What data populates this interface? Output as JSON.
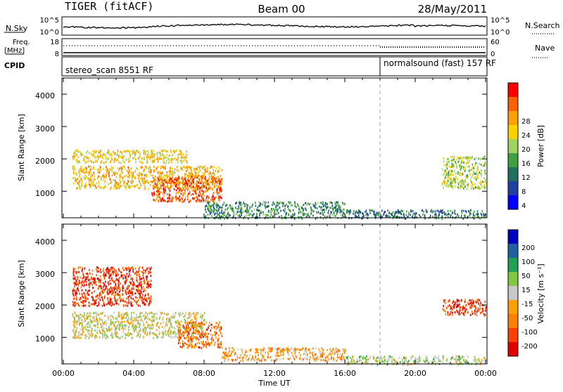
{
  "header": {
    "radar": "TIGER (fitACF)",
    "beam": "Beam 00",
    "date": "28/May/2011"
  },
  "nsky_panel": {
    "left_label": "N.Sky",
    "right_label": "N.Search",
    "ticks_left": [
      "10^5",
      "10^0"
    ],
    "ticks_right": [
      "10^5",
      "10^0"
    ]
  },
  "freq_panel": {
    "left_label_1": "Freq.",
    "left_label_2": "[MHz]",
    "ticks_left": [
      "18",
      "8"
    ],
    "ticks_right": [
      "60",
      "0"
    ],
    "right_label": "Nave"
  },
  "cpid_panel": {
    "label": "CPID",
    "segments": [
      {
        "name": "stereo_scan 8551 RF",
        "start_hour": 0
      },
      {
        "name": "normalsound (fast) 157 RF",
        "start_hour": 18
      }
    ]
  },
  "x_axis": {
    "label": "Time UT",
    "ticks": [
      "00:00",
      "04:00",
      "08:00",
      "12:00",
      "16:00",
      "20:00",
      "00:00"
    ]
  },
  "power_panel": {
    "ylabel": "Slant Range [km]",
    "yticks": [
      "4000",
      "3000",
      "2000",
      "1000"
    ],
    "colorbar_label": "Power [dB]",
    "colorbar_ticks": [
      "28",
      "24",
      "20",
      "16",
      "12",
      "8",
      "4"
    ],
    "colors": [
      "#ff0000",
      "#ff6000",
      "#ffa000",
      "#ffd000",
      "#a0d060",
      "#40a040",
      "#207060",
      "#2040a0",
      "#0000ff"
    ]
  },
  "velocity_panel": {
    "ylabel": "Slant Range [km]",
    "yticks": [
      "4000",
      "3000",
      "2000",
      "1000"
    ],
    "colorbar_label": "Velocity [m s⁻¹]",
    "colorbar_ticks": [
      "200",
      "100",
      "50",
      "15",
      "-15",
      "-50",
      "-100",
      "-200"
    ],
    "colors": [
      "#0000c0",
      "#2060a0",
      "#20a050",
      "#80c840",
      "#c8c8c8",
      "#ffa000",
      "#ff8000",
      "#ff4000",
      "#e00000"
    ]
  },
  "chart_data": [
    {
      "type": "heatmap",
      "title": "Power",
      "xlabel": "Time UT",
      "ylabel": "Slant Range [km]",
      "xlim": [
        0,
        24
      ],
      "ylim": [
        180,
        4500
      ],
      "colorbar": {
        "label": "Power [dB]",
        "range": [
          0,
          32
        ]
      },
      "echo_regions": [
        {
          "hours": [
            0.5,
            9
          ],
          "range_km": [
            1100,
            1800
          ],
          "power_db": 22
        },
        {
          "hours": [
            5,
            9
          ],
          "range_km": [
            700,
            1500
          ],
          "power_db": 28
        },
        {
          "hours": [
            0.5,
            7
          ],
          "range_km": [
            1900,
            2300
          ],
          "power_db": 20
        },
        {
          "hours": [
            8,
            16
          ],
          "range_km": [
            180,
            700
          ],
          "power_db": 10
        },
        {
          "hours": [
            16,
            24
          ],
          "range_km": [
            180,
            450
          ],
          "power_db": 8
        },
        {
          "hours": [
            21.5,
            24
          ],
          "range_km": [
            1100,
            2100
          ],
          "power_db": 16
        }
      ]
    },
    {
      "type": "heatmap",
      "title": "Velocity",
      "xlabel": "Time UT",
      "ylabel": "Slant Range [km]",
      "xlim": [
        0,
        24
      ],
      "ylim": [
        180,
        4500
      ],
      "colorbar": {
        "label": "Velocity [m s⁻¹]",
        "range": [
          -250,
          250
        ]
      },
      "echo_regions": [
        {
          "hours": [
            0.5,
            8
          ],
          "range_km": [
            1000,
            1800
          ],
          "velocity_ms": 0
        },
        {
          "hours": [
            6.5,
            9
          ],
          "range_km": [
            700,
            1500
          ],
          "velocity_ms": -150
        },
        {
          "hours": [
            0.5,
            5
          ],
          "range_km": [
            2000,
            3200
          ],
          "velocity_ms": -200
        },
        {
          "hours": [
            9,
            16
          ],
          "range_km": [
            300,
            700
          ],
          "velocity_ms": -80
        },
        {
          "hours": [
            16,
            24
          ],
          "range_km": [
            180,
            450
          ],
          "velocity_ms": 30
        },
        {
          "hours": [
            21.5,
            24
          ],
          "range_km": [
            1700,
            2200
          ],
          "velocity_ms": -200
        }
      ]
    }
  ]
}
